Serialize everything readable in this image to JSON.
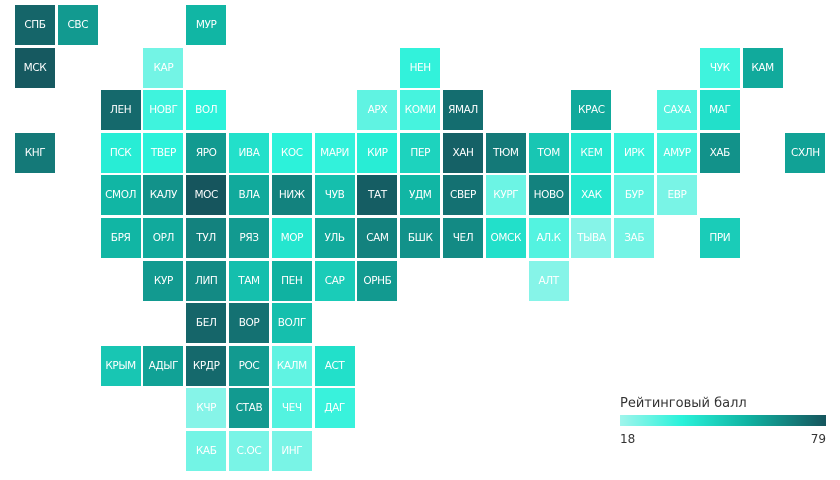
{
  "chart_data": {
    "type": "heatmap",
    "legend_title": "Рейтинговый балл",
    "scale_min": 18,
    "scale_max": 79,
    "colors": [
      "#a0f5ec",
      "#2af2da",
      "#10b3a2",
      "#16555d"
    ],
    "regions": [
      {
        "label": "СПБ",
        "value": 75
      },
      {
        "label": "СВС",
        "value": 62
      },
      {
        "label": "МУР",
        "value": 55
      },
      {
        "label": "МСК",
        "value": 78
      },
      {
        "label": "КАР",
        "value": 25
      },
      {
        "label": "НЕН",
        "value": 35
      },
      {
        "label": "ЧУК",
        "value": 33
      },
      {
        "label": "КАМ",
        "value": 58
      },
      {
        "label": "ЛЕН",
        "value": 74
      },
      {
        "label": "НОВГ",
        "value": 33
      },
      {
        "label": "ВОЛ",
        "value": 36
      },
      {
        "label": "АРХ",
        "value": 28
      },
      {
        "label": "КОМИ",
        "value": 32
      },
      {
        "label": "ЯМАЛ",
        "value": 73
      },
      {
        "label": "КРАС",
        "value": 58
      },
      {
        "label": "САХА",
        "value": 30
      },
      {
        "label": "МАГ",
        "value": 42
      },
      {
        "label": "КНГ",
        "value": 70
      },
      {
        "label": "ПСК",
        "value": 38
      },
      {
        "label": "ТВЕР",
        "value": 36
      },
      {
        "label": "ЯРО",
        "value": 62
      },
      {
        "label": "ИВА",
        "value": 42
      },
      {
        "label": "КОС",
        "value": 36
      },
      {
        "label": "МАРИ",
        "value": 35
      },
      {
        "label": "КИР",
        "value": 38
      },
      {
        "label": "ПЕР",
        "value": 46
      },
      {
        "label": "ХАН",
        "value": 76
      },
      {
        "label": "ТЮМ",
        "value": 70
      },
      {
        "label": "ТОМ",
        "value": 50
      },
      {
        "label": "КЕМ",
        "value": 40
      },
      {
        "label": "ИРК",
        "value": 34
      },
      {
        "label": "АМУР",
        "value": 32
      },
      {
        "label": "ХАБ",
        "value": 64
      },
      {
        "label": "СХЛН",
        "value": 60
      },
      {
        "label": "СМОЛ",
        "value": 55
      },
      {
        "label": "КАЛУ",
        "value": 64
      },
      {
        "label": "МОС",
        "value": 79
      },
      {
        "label": "ВЛА",
        "value": 58
      },
      {
        "label": "НИЖ",
        "value": 68
      },
      {
        "label": "ЧУВ",
        "value": 52
      },
      {
        "label": "ТАТ",
        "value": 77
      },
      {
        "label": "УДМ",
        "value": 55
      },
      {
        "label": "СВЕР",
        "value": 72
      },
      {
        "label": "КУРГ",
        "value": 26
      },
      {
        "label": "НОВО",
        "value": 68
      },
      {
        "label": "ХАК",
        "value": 40
      },
      {
        "label": "БУР",
        "value": 28
      },
      {
        "label": "ЕВР",
        "value": 24
      },
      {
        "label": "БРЯ",
        "value": 55
      },
      {
        "label": "ОРЛ",
        "value": 58
      },
      {
        "label": "ТУЛ",
        "value": 68
      },
      {
        "label": "РЯЗ",
        "value": 62
      },
      {
        "label": "МОР",
        "value": 40
      },
      {
        "label": "УЛЬ",
        "value": 58
      },
      {
        "label": "САМ",
        "value": 68
      },
      {
        "label": "БШК",
        "value": 64
      },
      {
        "label": "ЧЕЛ",
        "value": 66
      },
      {
        "label": "ОМСК",
        "value": 42
      },
      {
        "label": "АЛ.К",
        "value": 30
      },
      {
        "label": "ТЫВА",
        "value": 22
      },
      {
        "label": "ЗАБ",
        "value": 25
      },
      {
        "label": "ПРИ",
        "value": 48
      },
      {
        "label": "КУР",
        "value": 62
      },
      {
        "label": "ЛИП",
        "value": 66
      },
      {
        "label": "ТАМ",
        "value": 52
      },
      {
        "label": "ПЕН",
        "value": 56
      },
      {
        "label": "САР",
        "value": 48
      },
      {
        "label": "ОРНБ",
        "value": 62
      },
      {
        "label": "АЛТ",
        "value": 22
      },
      {
        "label": "БЕЛ",
        "value": 75
      },
      {
        "label": "ВОР",
        "value": 72
      },
      {
        "label": "ВОЛГ",
        "value": 52
      },
      {
        "label": "КРЫМ",
        "value": 50
      },
      {
        "label": "АДЫГ",
        "value": 60
      },
      {
        "label": "КРДР",
        "value": 74
      },
      {
        "label": "РОС",
        "value": 62
      },
      {
        "label": "КАЛМ",
        "value": 28
      },
      {
        "label": "АСТ",
        "value": 42
      },
      {
        "label": "КЧР",
        "value": 22
      },
      {
        "label": "СТАВ",
        "value": 62
      },
      {
        "label": "ЧЕЧ",
        "value": 30
      },
      {
        "label": "ДАГ",
        "value": 34
      },
      {
        "label": "КАБ",
        "value": 25
      },
      {
        "label": "С.ОС",
        "value": 24
      },
      {
        "label": "ИНГ",
        "value": 24
      }
    ]
  }
}
